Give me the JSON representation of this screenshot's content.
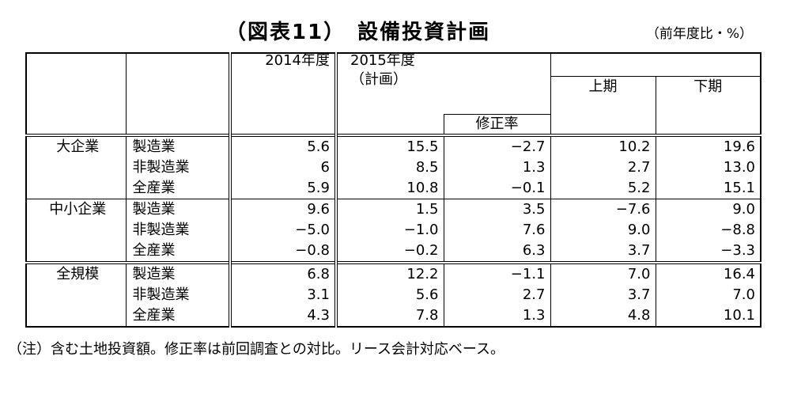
{
  "title": {
    "main": "（図表11）　設備投資計画",
    "unit": "（前年度比・%）"
  },
  "header": {
    "col_2014": "2014年度",
    "col_2015": "2015年度",
    "col_2015_sub": "（計画）",
    "revision": "修正率",
    "first_half": "上期",
    "second_half": "下期"
  },
  "groups": [
    {
      "company": "大企業",
      "rows": [
        {
          "category": "製造業",
          "fy2014": "5.6",
          "fy2015": "15.5",
          "revision": "−2.7",
          "first_half": "10.2",
          "second_half": "19.6"
        },
        {
          "category": "非製造業",
          "fy2014": "6",
          "fy2015": "8.5",
          "revision": "1.3",
          "first_half": "2.7",
          "second_half": "13.0"
        },
        {
          "category": "全産業",
          "fy2014": "5.9",
          "fy2015": "10.8",
          "revision": "−0.1",
          "first_half": "5.2",
          "second_half": "15.1"
        }
      ]
    },
    {
      "company": "中小企業",
      "rows": [
        {
          "category": "製造業",
          "fy2014": "9.6",
          "fy2015": "1.5",
          "revision": "3.5",
          "first_half": "−7.6",
          "second_half": "9.0"
        },
        {
          "category": "非製造業",
          "fy2014": "−5.0",
          "fy2015": "−1.0",
          "revision": "7.6",
          "first_half": "9.0",
          "second_half": "−8.8"
        },
        {
          "category": "全産業",
          "fy2014": "−0.8",
          "fy2015": "−0.2",
          "revision": "6.3",
          "first_half": "3.7",
          "second_half": "−3.3"
        }
      ]
    },
    {
      "company": "全規模",
      "rows": [
        {
          "category": "製造業",
          "fy2014": "6.8",
          "fy2015": "12.2",
          "revision": "−1.1",
          "first_half": "7.0",
          "second_half": "16.4"
        },
        {
          "category": "非製造業",
          "fy2014": "3.1",
          "fy2015": "5.6",
          "revision": "2.7",
          "first_half": "3.7",
          "second_half": "7.0"
        },
        {
          "category": "全産業",
          "fy2014": "4.3",
          "fy2015": "7.8",
          "revision": "1.3",
          "first_half": "4.8",
          "second_half": "10.1"
        }
      ]
    }
  ],
  "note": "（注）含む土地投資額。修正率は前回調査との対比。リース会計対応ベース。"
}
